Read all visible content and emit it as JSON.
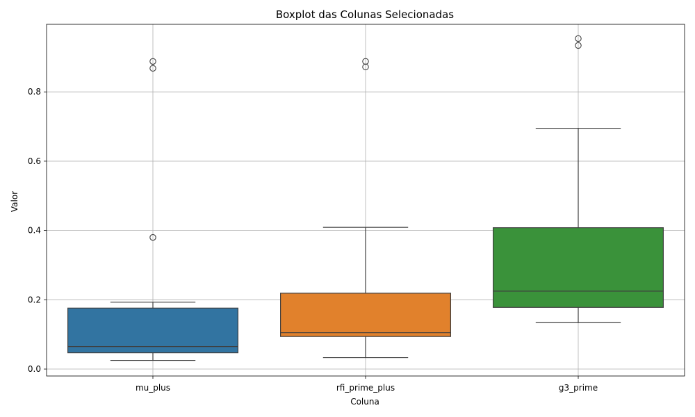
{
  "chart_data": {
    "type": "box",
    "title": "Boxplot das Colunas Selecionadas",
    "xlabel": "Coluna",
    "ylabel": "Valor",
    "ylim": [
      -0.02,
      0.995
    ],
    "yticks": [
      0.0,
      0.2,
      0.4,
      0.6,
      0.8
    ],
    "ytick_labels": [
      "0.0",
      "0.2",
      "0.4",
      "0.6",
      "0.8"
    ],
    "grid": true,
    "categories": [
      "mu_plus",
      "rfi_prime_plus",
      "g3_prime"
    ],
    "boxes": [
      {
        "name": "mu_plus",
        "color": "#3274a1",
        "whislo": 0.025,
        "q1": 0.047,
        "median": 0.065,
        "q3": 0.176,
        "whishi": 0.193,
        "outliers": [
          0.38,
          0.868,
          0.888
        ]
      },
      {
        "name": "rfi_prime_plus",
        "color": "#e1812c",
        "whislo": 0.033,
        "q1": 0.094,
        "median": 0.105,
        "q3": 0.219,
        "whishi": 0.409,
        "outliers": [
          0.872,
          0.888
        ]
      },
      {
        "name": "g3_prime",
        "color": "#3a923a",
        "whislo": 0.134,
        "q1": 0.178,
        "median": 0.225,
        "q3": 0.408,
        "whishi": 0.695,
        "outliers": [
          0.934,
          0.954
        ]
      }
    ]
  }
}
